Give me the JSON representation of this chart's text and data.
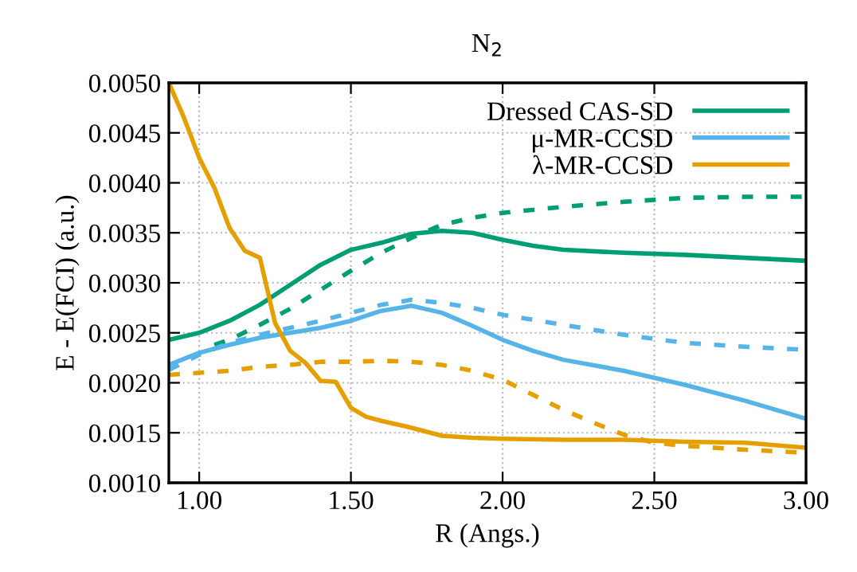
{
  "chart_data": {
    "type": "line",
    "title": "N$_{2}$",
    "xlabel": "R (Angs.)",
    "ylabel": "E - E(FCI) (a.u.)",
    "xlim": [
      0.9,
      3.0
    ],
    "xticks": [
      {
        "value": 1.0,
        "label": "1.00"
      },
      {
        "value": 1.5,
        "label": "1.50"
      },
      {
        "value": 2.0,
        "label": "2.00"
      },
      {
        "value": 2.5,
        "label": "2.50"
      },
      {
        "value": 3.0,
        "label": "3.00"
      }
    ],
    "ylim": [
      0.001,
      0.005
    ],
    "yticks": [
      {
        "value": 0.001,
        "label": "0.0010"
      },
      {
        "value": 0.0015,
        "label": "0.0015"
      },
      {
        "value": 0.002,
        "label": "0.0020"
      },
      {
        "value": 0.0025,
        "label": "0.0025"
      },
      {
        "value": 0.003,
        "label": "0.0030"
      },
      {
        "value": 0.0035,
        "label": "0.0035"
      },
      {
        "value": 0.004,
        "label": "0.0040"
      },
      {
        "value": 0.0045,
        "label": "0.0045"
      },
      {
        "value": 0.005,
        "label": "0.0050"
      }
    ],
    "grid": true,
    "legend": "top right",
    "marker": "none",
    "series": [
      {
        "name": "Dressed CAS-SD",
        "color": "#009e73",
        "line_style": "solid",
        "x": [
          0.9,
          1.0,
          1.1,
          1.2,
          1.3,
          1.4,
          1.5,
          1.6,
          1.7,
          1.8,
          1.9,
          2.0,
          2.1,
          2.2,
          2.4,
          2.6,
          2.8,
          3.0
        ],
        "values": [
          0.00243,
          0.0025,
          0.00262,
          0.00278,
          0.00298,
          0.00318,
          0.00333,
          0.0034,
          0.00349,
          0.00352,
          0.0035,
          0.00343,
          0.00337,
          0.00333,
          0.0033,
          0.00328,
          0.00325,
          0.00322
        ]
      },
      {
        "name": "μ-MR-CCSD",
        "color": "#56b4e9",
        "line_style": "solid",
        "x": [
          0.9,
          1.0,
          1.1,
          1.2,
          1.3,
          1.4,
          1.5,
          1.6,
          1.7,
          1.8,
          1.9,
          2.0,
          2.1,
          2.2,
          2.4,
          2.6,
          2.8,
          3.0
        ],
        "values": [
          0.00218,
          0.0023,
          0.00238,
          0.00245,
          0.0025,
          0.00255,
          0.00262,
          0.00272,
          0.00277,
          0.0027,
          0.00257,
          0.00243,
          0.00232,
          0.00223,
          0.00212,
          0.00198,
          0.00182,
          0.00164
        ]
      },
      {
        "name": "λ-MR-CCSD",
        "color": "#e69f00",
        "line_style": "solid",
        "x": [
          0.9,
          0.95,
          1.0,
          1.05,
          1.1,
          1.15,
          1.2,
          1.25,
          1.3,
          1.35,
          1.4,
          1.45,
          1.5,
          1.55,
          1.6,
          1.7,
          1.8,
          1.9,
          2.0,
          2.2,
          2.4,
          2.6,
          2.8,
          3.0
        ],
        "values": [
          0.005,
          0.00465,
          0.00425,
          0.00395,
          0.00355,
          0.00332,
          0.00325,
          0.0026,
          0.00232,
          0.0022,
          0.00202,
          0.00201,
          0.00175,
          0.00166,
          0.00162,
          0.00155,
          0.00147,
          0.00145,
          0.00144,
          0.00143,
          0.00143,
          0.00141,
          0.0014,
          0.00135
        ]
      },
      {
        "color": "#009e73",
        "line_style": "dashed",
        "x": [
          1.05,
          1.1,
          1.2,
          1.3,
          1.4,
          1.5,
          1.6,
          1.7,
          1.8,
          1.9,
          2.0,
          2.2,
          2.4,
          2.6,
          2.8,
          3.0
        ],
        "values": [
          0.00238,
          0.00243,
          0.00258,
          0.00274,
          0.00293,
          0.00312,
          0.0033,
          0.00345,
          0.00358,
          0.00365,
          0.0037,
          0.00376,
          0.00381,
          0.00385,
          0.00386,
          0.00386
        ]
      },
      {
        "color": "#56b4e9",
        "line_style": "dashed",
        "x": [
          0.9,
          1.0,
          1.1,
          1.2,
          1.3,
          1.4,
          1.5,
          1.6,
          1.7,
          1.8,
          1.9,
          2.0,
          2.2,
          2.4,
          2.6,
          2.8,
          3.0
        ],
        "values": [
          0.00213,
          0.00228,
          0.0024,
          0.00248,
          0.00255,
          0.00262,
          0.0027,
          0.00278,
          0.00283,
          0.0028,
          0.00275,
          0.00268,
          0.00258,
          0.00248,
          0.0024,
          0.00236,
          0.00233
        ]
      },
      {
        "color": "#e69f00",
        "line_style": "dashed",
        "x": [
          0.9,
          1.0,
          1.1,
          1.2,
          1.3,
          1.4,
          1.5,
          1.6,
          1.7,
          1.8,
          1.9,
          2.0,
          2.1,
          2.2,
          2.3,
          2.4,
          2.5,
          2.6,
          2.8,
          3.0
        ],
        "values": [
          0.00208,
          0.0021,
          0.00212,
          0.00216,
          0.00218,
          0.00221,
          0.00221,
          0.00222,
          0.00221,
          0.00218,
          0.00212,
          0.00203,
          0.00188,
          0.00173,
          0.0016,
          0.00148,
          0.0014,
          0.00137,
          0.00133,
          0.0013
        ]
      }
    ]
  }
}
